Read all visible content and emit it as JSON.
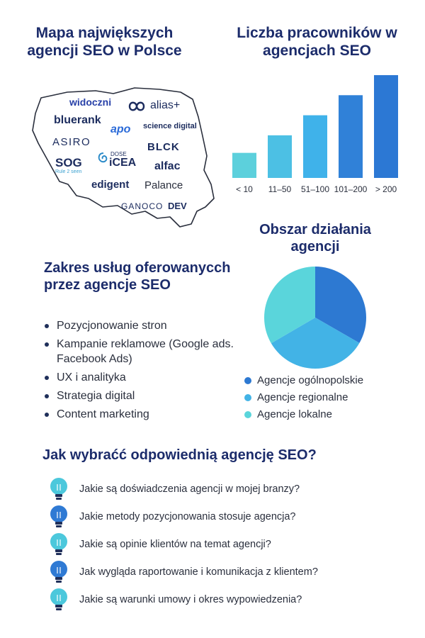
{
  "map": {
    "title": "Mapa największych agencji SEO w Polsce",
    "logos": [
      {
        "key": "widoczni",
        "text": "widoczni",
        "color": "#2740a8",
        "icon": "none"
      },
      {
        "key": "alias",
        "text": "alias+",
        "color": "#1c2c5e",
        "icon": "loop-logo-icon"
      },
      {
        "key": "bluerank",
        "text": "bluerank",
        "color": "#1c2c5e",
        "icon": "none"
      },
      {
        "key": "apo",
        "text": "apo",
        "color": "#2a6ad8",
        "icon": "none"
      },
      {
        "key": "science",
        "text": "science digital",
        "color": "#1c2c5e",
        "icon": "none"
      },
      {
        "key": "asiro",
        "text": "ASIRO",
        "color": "#1c2c5e",
        "icon": "none"
      },
      {
        "key": "block",
        "text": "BLCK",
        "color": "#1c2c5e",
        "icon": "none"
      },
      {
        "key": "sog",
        "text": "SOG",
        "color": "#1c2c5e",
        "icon": "none"
      },
      {
        "key": "sog_tag",
        "text": "Rule 2 seen",
        "color": "#3aa0d0",
        "icon": "none"
      },
      {
        "key": "dose",
        "text": "DOSE",
        "color": "#1c2c5e",
        "icon": "none"
      },
      {
        "key": "icea",
        "text": "iCEA",
        "color": "#1c2c5e",
        "icon": "swirl-logo-icon"
      },
      {
        "key": "alfac",
        "text": "alfac",
        "color": "#1c2c5e",
        "icon": "none"
      },
      {
        "key": "edigent",
        "text": "edigent",
        "color": "#1c2c5e",
        "icon": "none"
      },
      {
        "key": "palance",
        "text": "Palance",
        "color": "#2a2f3d",
        "icon": "none"
      },
      {
        "key": "ganoco",
        "text": "GANOCO",
        "color": "#1c2c5e",
        "icon": "none"
      },
      {
        "key": "dev",
        "text": "DEV",
        "color": "#1c2c5e",
        "icon": "none"
      }
    ]
  },
  "employees": {
    "title": "Liczba pracowników w agencjach SEO"
  },
  "chart_data": [
    {
      "type": "bar",
      "title": "Liczba pracowników w agencjach SEO",
      "categories": [
        "< 10",
        "11–50",
        "51–100",
        "101–200",
        "> 200"
      ],
      "values": [
        1,
        1.7,
        2.5,
        3.3,
        4.1
      ],
      "colors": [
        "#5cd0dc",
        "#4cc0e4",
        "#3fb2ea",
        "#3081d8",
        "#2c78d4"
      ],
      "xlabel": "",
      "ylabel": "",
      "grid": false
    },
    {
      "type": "pie",
      "title": "Obszar działania agencji",
      "categories": [
        "Agencje ogólnopolskie",
        "Agencje regionalne",
        "Agencje lokalne"
      ],
      "values": [
        33.3,
        33.3,
        33.4
      ],
      "colors": [
        "#2d79d2",
        "#42b3e6",
        "#5ad5db"
      ],
      "legend_position": "bottom"
    }
  ],
  "services": {
    "title": "Zakres usług oferowanycch przez agencje SEO",
    "items": [
      "Pozycjonowanie stron",
      "Kampanie reklamowe (Google ads. Facebook Ads)",
      "UX i analityka",
      "Strategia digital",
      "Content marketing"
    ]
  },
  "area": {
    "title": "Obszar działania agencji",
    "legend": [
      {
        "label": "Agencje ogólnopolskie",
        "color": "#2d79d2"
      },
      {
        "label": "Agencje regionalne",
        "color": "#42b3e6"
      },
      {
        "label": "Agencje lokalne",
        "color": "#5ad5db"
      }
    ]
  },
  "questions": {
    "title": "Jak wybraćć odpowiednią agencję SEO?",
    "items": [
      {
        "text": "Jakie są doświadczenia agencji w mojej branzy?",
        "color": "#4cc8dc",
        "icon": "lightbulb-icon"
      },
      {
        "text": "Jakie metody pozycjonowania stosuje agencja?",
        "color": "#2f7ad4",
        "icon": "lightbulb-icon"
      },
      {
        "text": "Jakie są opinie klientów na temat agencji?",
        "color": "#4cc8dc",
        "icon": "lightbulb-icon"
      },
      {
        "text": "Jak wygląda raportowanie i komunikacja z klientem?",
        "color": "#2f7ad4",
        "icon": "lightbulb-icon"
      },
      {
        "text": "Jakie są warunki umowy i okres wypowiedzenia?",
        "color": "#4cc8dc",
        "icon": "lightbulb-icon"
      }
    ]
  }
}
